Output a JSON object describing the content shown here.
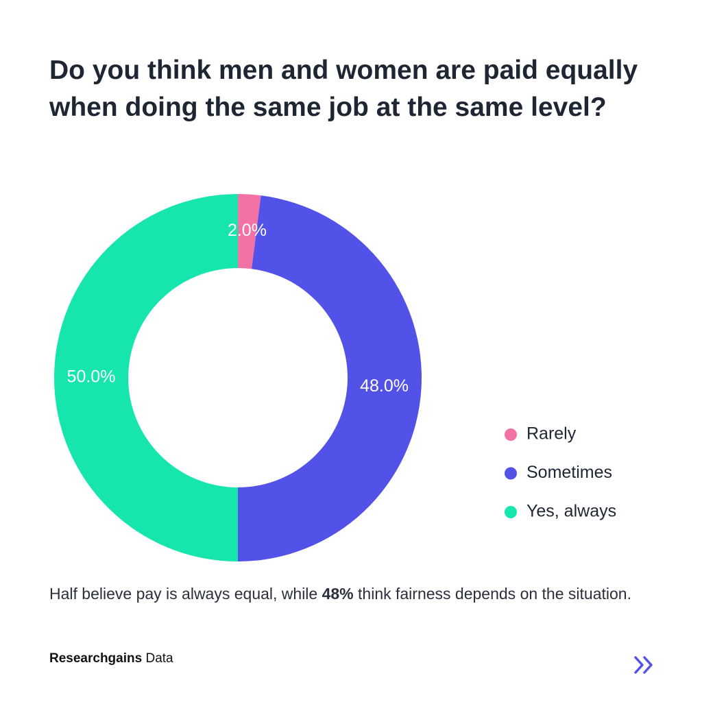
{
  "chart_data": {
    "type": "donut",
    "title": "Do you think men and women are paid equally when doing the same job at the same level?",
    "categories": [
      "Rarely",
      "Sometimes",
      "Yes, always"
    ],
    "values": [
      2,
      48,
      50
    ],
    "value_labels": [
      "2.0%",
      "48.0%",
      "50.0%"
    ],
    "colors": [
      "#f272a6",
      "#5252e8",
      "#16e6ad"
    ],
    "legend": "right"
  },
  "caption": {
    "parts": [
      "Half believe pay is always equal, while ",
      "48%",
      " think fairness depends on the situation."
    ]
  },
  "footer": {
    "brand": "Researchgains",
    "suffix": "Data"
  }
}
